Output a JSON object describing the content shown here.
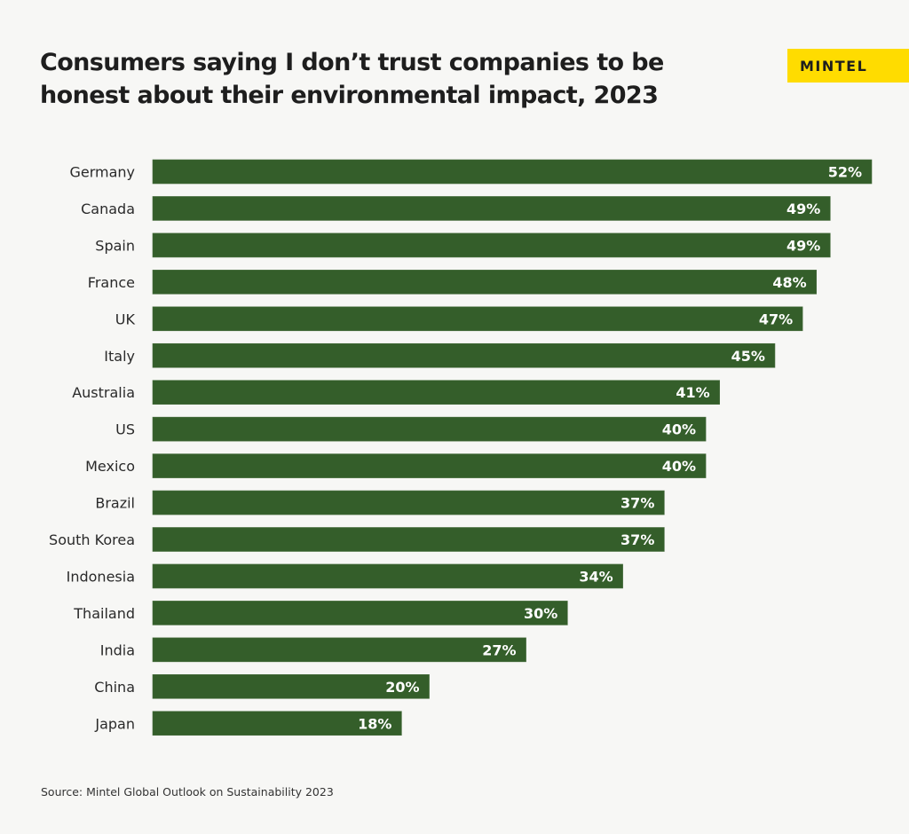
{
  "chart_data": {
    "type": "bar",
    "orientation": "horizontal",
    "title": "Consumers saying I don’t trust companies to be honest about their environmental impact, 2023",
    "categories": [
      "Germany",
      "Canada",
      "Spain",
      "France",
      "UK",
      "Italy",
      "Australia",
      "US",
      "Mexico",
      "Brazil",
      "South Korea",
      "Indonesia",
      "Thailand",
      "India",
      "China",
      "Japan"
    ],
    "values": [
      52,
      49,
      49,
      48,
      47,
      45,
      41,
      40,
      40,
      37,
      37,
      34,
      30,
      27,
      20,
      18
    ],
    "value_labels": [
      "52%",
      "49%",
      "49%",
      "48%",
      "47%",
      "45%",
      "41%",
      "40%",
      "40%",
      "37%",
      "37%",
      "34%",
      "30%",
      "27%",
      "20%",
      "18%"
    ],
    "unit": "%",
    "xlabel": "",
    "ylabel": "",
    "xlim": [
      0,
      52
    ],
    "grid": false,
    "legend": "none",
    "bar_color": "#345e2a"
  },
  "brand": {
    "logo_text": "MINTEL",
    "logo_color": "#ffdc00"
  },
  "source": "Source: Mintel Global Outlook on Sustainability 2023"
}
